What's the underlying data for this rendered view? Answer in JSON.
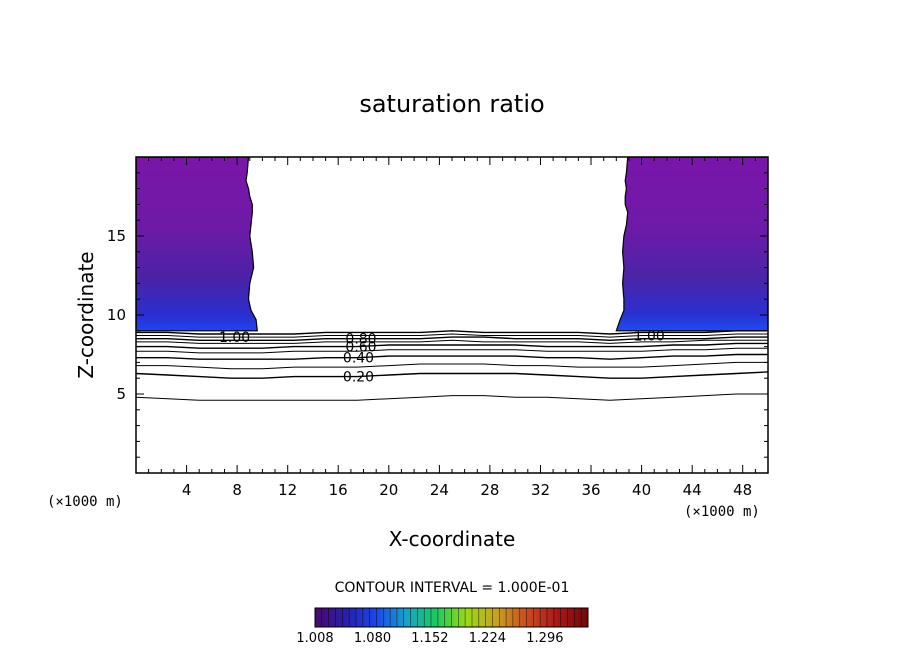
{
  "chart_data": {
    "type": "contour",
    "title": "saturation ratio",
    "xlabel": "X-coordinate",
    "ylabel": "Z-coordinate",
    "x_unit_left": "(×1000 m)",
    "x_unit_right": "(×1000 m)",
    "xlim": [
      0,
      50
    ],
    "ylim": [
      0,
      20
    ],
    "xticks": [
      4,
      8,
      12,
      16,
      20,
      24,
      28,
      32,
      36,
      40,
      44,
      48
    ],
    "yticks": [
      5,
      10,
      15
    ],
    "contour_interval_text": "CONTOUR INTERVAL = 1.000E-01",
    "contour_levels": [
      0.1,
      0.2,
      0.3,
      0.4,
      0.5,
      0.6,
      0.7,
      0.8,
      0.9,
      1.0
    ],
    "contour_lines": [
      {
        "level": 0.1,
        "z": [
          4.8,
          4.7,
          4.6,
          4.6,
          4.6,
          4.6,
          4.6,
          4.6,
          4.7,
          4.8,
          4.9,
          4.9,
          4.8,
          4.8,
          4.7,
          4.6,
          4.7,
          4.8,
          4.9,
          5.0,
          5.0
        ]
      },
      {
        "level": 0.2,
        "z": [
          6.3,
          6.2,
          6.1,
          6.0,
          6.0,
          6.1,
          6.1,
          6.1,
          6.2,
          6.3,
          6.3,
          6.3,
          6.3,
          6.2,
          6.1,
          6.0,
          6.0,
          6.1,
          6.2,
          6.3,
          6.4
        ]
      },
      {
        "level": 0.3,
        "z": [
          6.8,
          6.8,
          6.7,
          6.6,
          6.6,
          6.7,
          6.7,
          6.7,
          6.8,
          6.9,
          6.9,
          6.9,
          6.8,
          6.8,
          6.7,
          6.7,
          6.7,
          6.8,
          6.9,
          7.0,
          7.0
        ]
      },
      {
        "level": 0.4,
        "z": [
          7.3,
          7.3,
          7.2,
          7.2,
          7.2,
          7.2,
          7.3,
          7.3,
          7.4,
          7.4,
          7.4,
          7.4,
          7.4,
          7.3,
          7.3,
          7.2,
          7.3,
          7.4,
          7.4,
          7.5,
          7.5
        ]
      },
      {
        "level": 0.5,
        "z": [
          7.7,
          7.7,
          7.6,
          7.6,
          7.6,
          7.7,
          7.7,
          7.7,
          7.8,
          7.8,
          7.8,
          7.8,
          7.8,
          7.7,
          7.7,
          7.7,
          7.7,
          7.8,
          7.8,
          7.9,
          7.9
        ]
      },
      {
        "level": 0.6,
        "z": [
          8.0,
          8.0,
          7.9,
          7.9,
          7.9,
          8.0,
          8.0,
          8.0,
          8.1,
          8.1,
          8.1,
          8.1,
          8.1,
          8.0,
          8.0,
          8.0,
          8.0,
          8.1,
          8.1,
          8.2,
          8.2
        ]
      },
      {
        "level": 0.7,
        "z": [
          8.3,
          8.3,
          8.2,
          8.2,
          8.2,
          8.2,
          8.3,
          8.3,
          8.3,
          8.3,
          8.4,
          8.3,
          8.3,
          8.3,
          8.3,
          8.2,
          8.3,
          8.3,
          8.4,
          8.4,
          8.4
        ]
      },
      {
        "level": 0.8,
        "z": [
          8.5,
          8.5,
          8.4,
          8.4,
          8.4,
          8.4,
          8.5,
          8.5,
          8.5,
          8.5,
          8.6,
          8.6,
          8.5,
          8.5,
          8.5,
          8.4,
          8.5,
          8.5,
          8.5,
          8.6,
          8.6
        ]
      },
      {
        "level": 0.9,
        "z": [
          8.7,
          8.7,
          8.6,
          8.6,
          8.6,
          8.6,
          8.7,
          8.7,
          8.7,
          8.7,
          8.8,
          8.7,
          8.7,
          8.7,
          8.7,
          8.6,
          8.7,
          8.7,
          8.7,
          8.8,
          8.8
        ]
      },
      {
        "level": 1.0,
        "z": [
          8.9,
          8.9,
          8.8,
          8.8,
          8.8,
          8.8,
          8.9,
          8.9,
          8.9,
          8.9,
          9.0,
          8.9,
          8.9,
          8.9,
          8.9,
          8.8,
          8.9,
          8.9,
          8.9,
          9.0,
          9.0
        ]
      }
    ],
    "contour_labels": [
      {
        "text": "1.00",
        "x": 7.8,
        "z": 8.6
      },
      {
        "text": "0.80",
        "x": 17.8,
        "z": 8.5
      },
      {
        "text": "0.60",
        "x": 17.8,
        "z": 8.0
      },
      {
        "text": "0.40",
        "x": 17.6,
        "z": 7.3
      },
      {
        "text": "0.20",
        "x": 17.6,
        "z": 6.1
      },
      {
        "text": "1.00",
        "x": 40.6,
        "z": 8.7
      }
    ],
    "supersaturated_regions": [
      {
        "side": "left",
        "x_range": [
          0,
          10
        ],
        "z_range": [
          9.0,
          20
        ],
        "edge_x": [
          9.6,
          9.5,
          9.1,
          8.9,
          9.0,
          9.3,
          9.2,
          9.0,
          9.1,
          9.2,
          9.2,
          9.0,
          8.9,
          8.7,
          8.8,
          8.9
        ],
        "edge_z": [
          9.0,
          9.7,
          10.3,
          11.0,
          12.0,
          13.0,
          14.0,
          15.0,
          15.7,
          16.5,
          17.0,
          17.5,
          18.0,
          18.5,
          19.0,
          20.0
        ]
      },
      {
        "side": "right",
        "x_range": [
          38,
          50
        ],
        "z_range": [
          9.0,
          20
        ],
        "edge_x": [
          38.0,
          38.3,
          38.6,
          38.6,
          38.5,
          38.6,
          38.5,
          38.6,
          38.8,
          38.9,
          38.7,
          38.7,
          38.8,
          38.7,
          38.8,
          38.9
        ],
        "edge_z": [
          9.0,
          9.7,
          10.3,
          11.0,
          12.0,
          13.0,
          14.0,
          15.0,
          15.7,
          16.5,
          17.0,
          17.5,
          18.0,
          18.5,
          19.0,
          20.0
        ]
      }
    ],
    "colorbar": {
      "labels": [
        "1.008",
        "1.080",
        "1.152",
        "1.224",
        "1.296"
      ],
      "range": [
        1.008,
        1.35
      ],
      "colors": [
        "#4a0a6e",
        "#2a1ea8",
        "#1a46e6",
        "#1aa0c8",
        "#20c860",
        "#9ad81a",
        "#c8a020",
        "#c84a20",
        "#a81818",
        "#6e0a0a"
      ]
    }
  }
}
